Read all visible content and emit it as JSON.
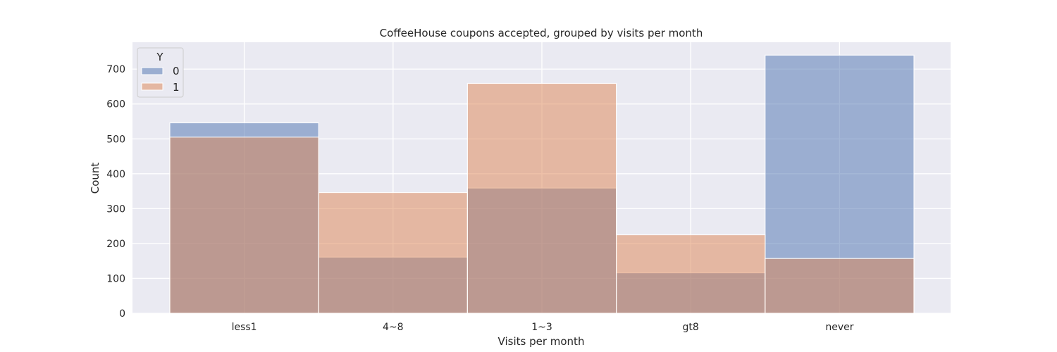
{
  "chart_data": {
    "type": "bar",
    "title": "CoffeeHouse coupons accepted, grouped by visits per month",
    "xlabel": "Visits per month",
    "ylabel": "Count",
    "categories": [
      "less1",
      "4~8",
      "1~3",
      "gt8",
      "never"
    ],
    "ylim": [
      0,
      777
    ],
    "yticks": [
      0,
      100,
      200,
      300,
      400,
      500,
      600,
      700
    ],
    "grid": true,
    "legend": {
      "title": "Y",
      "placement": "top-left"
    },
    "series": [
      {
        "name": "0",
        "values": [
          546,
          161,
          359,
          116,
          740
        ],
        "color": "#4c72b0"
      },
      {
        "name": "1",
        "values": [
          505,
          346,
          659,
          225,
          157
        ],
        "color": "#dd8452"
      }
    ]
  }
}
